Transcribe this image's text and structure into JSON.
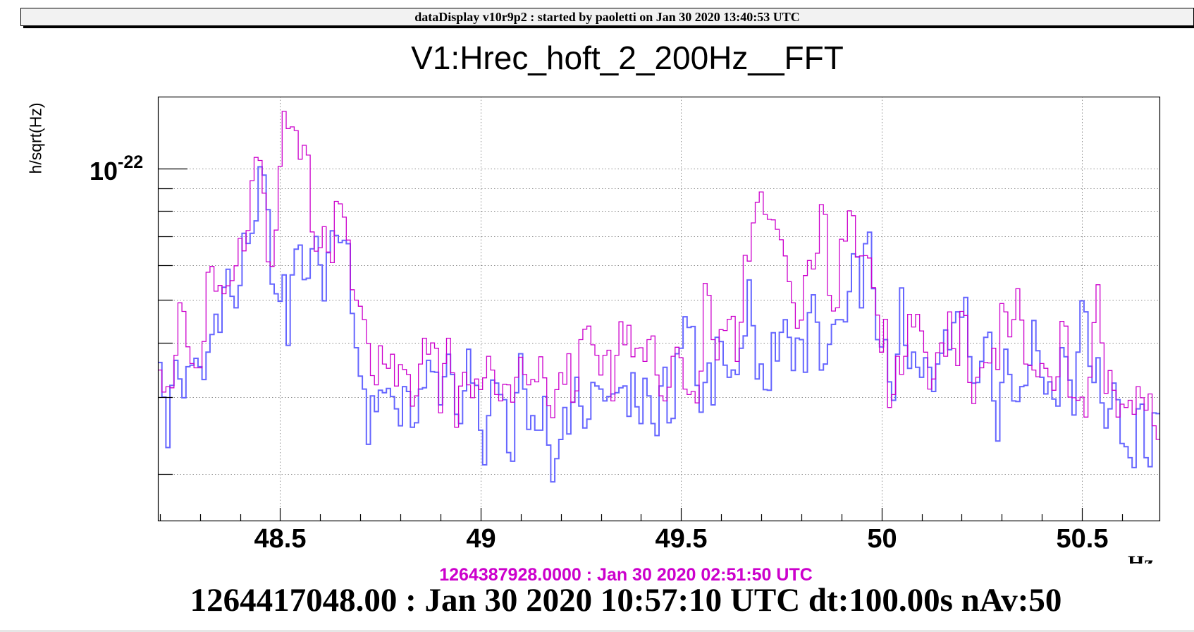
{
  "header": {
    "text": "dataDisplay v10r9p2 : started by paoletti on Jan 30 2020 13:40:53 UTC"
  },
  "footer": {
    "reference_time": "1264387928.0000 : Jan 30 2020 02:51:50 UTC",
    "current_time": "1264417048.00 : Jan 30 2020 10:57:10 UTC dt:100.00s nAv:50"
  },
  "colors": {
    "current": "#6666ff",
    "reference": "#cc00cc",
    "grid": "#8c8c8c"
  },
  "chart_data": {
    "type": "line",
    "style": "step-histogram",
    "title": "V1:Hrec_hoft_2_200Hz__FFT",
    "xlabel": "Hz",
    "ylabel": "h/sqrt(Hz)",
    "xlim": [
      48.195,
      50.695
    ],
    "ylim": [
      1.56e-23,
      1.46e-22
    ],
    "yscale": "log",
    "grid": true,
    "x_ticks": [
      {
        "value": 48.5,
        "label": "48.5"
      },
      {
        "value": 49,
        "label": "49"
      },
      {
        "value": 49.5,
        "label": "49.5"
      },
      {
        "value": 50,
        "label": "50"
      },
      {
        "value": 50.5,
        "label": "50.5"
      }
    ],
    "x_minor_step": 0.1,
    "y_tick_label": {
      "base": "10",
      "exponent": "-22",
      "value": 1e-22
    },
    "y_minor_ticks": [
      9e-23,
      8e-23,
      7e-23,
      6e-23,
      5e-23,
      4e-23,
      3e-23,
      2e-23
    ],
    "bin_start": 48.195,
    "bin_width": 0.01,
    "values_scale": 1e-23,
    "series": [
      {
        "color": "#6666ff",
        "role": "current",
        "values": [
          3.6,
          3.0,
          2.3,
          3.19,
          3.64,
          3.3,
          2.99,
          3.52,
          3.55,
          3.68,
          3.52,
          3.29,
          3.8,
          4.17,
          4.64,
          4.22,
          5.35,
          5.88,
          5.1,
          4.8,
          5.4,
          7.11,
          6.74,
          7.11,
          7.59,
          10.09,
          9.66,
          8.05,
          5.44,
          5.17,
          4.97,
          5.71,
          3.94,
          5.71,
          6.54,
          6.68,
          5.57,
          5.61,
          6.55,
          6.99,
          6.02,
          4.98,
          6.42,
          7.2,
          7.03,
          6.77,
          6.85,
          6.73,
          4.66,
          3.89,
          3.35,
          3.13,
          2.34,
          3.02,
          2.78,
          3.11,
          3.07,
          3.14,
          3.01,
          2.82,
          2.58,
          3.17,
          3.09,
          2.56,
          2.62,
          3.13,
          3.15,
          3.64,
          3.43,
          3.42,
          2.88,
          3.34,
          3.76,
          3.38,
          2.74,
          2.61,
          3.1,
          3.86,
          3.23,
          3.19,
          2.52,
          2.1,
          2.72,
          3.28,
          3.23,
          3.04,
          2.96,
          2.24,
          2.14,
          3.07,
          3.77,
          3.13,
          2.53,
          2.72,
          2.52,
          2.52,
          3.01,
          2.33,
          1.92,
          2.17,
          2.4,
          2.84,
          2.47,
          2.92,
          3.33,
          2.86,
          2.55,
          2.67,
          3.24,
          3.18,
          3.13,
          2.94,
          3.01,
          3.05,
          3.07,
          3.15,
          3.18,
          2.71,
          3.41,
          2.85,
          2.61,
          3.31,
          3.02,
          2.61,
          2.45,
          3.18,
          3.51,
          2.62,
          2.68,
          3.77,
          3.88,
          4.58,
          4.33,
          4.35,
          3.19,
          2.77,
          3.24,
          3.59,
          2.88,
          4.11,
          4.02,
          3.55,
          3.33,
          3.46,
          3.38,
          3.88,
          4.14,
          5.56,
          4.37,
          3.3,
          3.57,
          3.12,
          3.11,
          4.21,
          3.63,
          4.22,
          4.51,
          4.11,
          3.45,
          4.09,
          4.06,
          3.42,
          4.68,
          5.14,
          4.45,
          3.46,
          3.57,
          3.96,
          4.4,
          4.51,
          4.51,
          4.46,
          5.23,
          6.38,
          6.28,
          4.8,
          6.73,
          7.15,
          5.31,
          4.06,
          3.91,
          4.06,
          3.25,
          2.95,
          3.76,
          5.33,
          3.94,
          3.49,
          3.8,
          3.51,
          3.33,
          3.69,
          3.51,
          3.09,
          3.57,
          3.78,
          4.27,
          3.85,
          4.44,
          4.7,
          4.57,
          5.07,
          3.71,
          3.23,
          3.24,
          3.62,
          4.11,
          4.22,
          2.94,
          2.38,
          3.24,
          3.86,
          3.38,
          2.94,
          2.93,
          3.17,
          3.19,
          3.55,
          4.49,
          3.83,
          3.33,
          3.05,
          3.25,
          2.97,
          2.86,
          3.89,
          3.71,
          3.28,
          2.73,
          3.8,
          4.98,
          4.7,
          3.53,
          3.24,
          3.69,
          2.91,
          2.55,
          2.82,
          3.23,
          2.96,
          2.35,
          2.31,
          2.18,
          2.07,
          2.82,
          2.89,
          2.18,
          2.08,
          2.76,
          2.75
        ]
      },
      {
        "color": "#cc00cc",
        "role": "reference",
        "values": [
          3.46,
          3.08,
          3.17,
          3.15,
          3.74,
          4.93,
          4.71,
          3.91,
          3.58,
          3.5,
          3.5,
          4.02,
          5.79,
          5.97,
          5.24,
          5.4,
          5.17,
          5.39,
          5.54,
          5.99,
          6.92,
          6.48,
          7.21,
          9.38,
          10.6,
          10.43,
          8.78,
          6.12,
          5.97,
          7.23,
          10.11,
          13.51,
          12.34,
          12.45,
          12.21,
          10.5,
          11.3,
          10.73,
          7.16,
          6.47,
          6.59,
          7.36,
          6.44,
          6.09,
          8.41,
          8.3,
          7.74,
          6.86,
          5.28,
          5.0,
          4.84,
          4.51,
          3.98,
          3.36,
          3.2,
          3.93,
          3.57,
          3.49,
          3.76,
          3.18,
          3.56,
          3.47,
          3.38,
          2.86,
          3.02,
          3.57,
          4.09,
          3.76,
          3.99,
          3.88,
          2.76,
          3.58,
          4.09,
          3.41,
          2.56,
          3.18,
          3.42,
          3.2,
          2.99,
          3.3,
          3.12,
          3.32,
          3.72,
          3.46,
          3.04,
          2.94,
          3.21,
          3.2,
          2.92,
          3.33,
          3.7,
          3.38,
          3.2,
          3.29,
          3.25,
          3.71,
          3.32,
          2.87,
          2.69,
          3.12,
          3.41,
          3.21,
          3.77,
          2.92,
          3.1,
          4.06,
          4.29,
          4.36,
          3.95,
          3.74,
          3.37,
          3.74,
          3.84,
          2.94,
          3.74,
          4.46,
          3.95,
          4.38,
          3.71,
          3.88,
          3.89,
          3.62,
          4.06,
          4.14,
          3.37,
          3.02,
          2.94,
          3.16,
          3.72,
          3.9,
          3.69,
          3.13,
          3.04,
          3.09,
          2.91,
          3.44,
          5.46,
          5.13,
          4.06,
          3.65,
          4.28,
          4.26,
          4.52,
          4.59,
          3.62,
          4.45,
          6.33,
          6.14,
          7.51,
          8.37,
          8.84,
          7.85,
          7.65,
          7.63,
          7.26,
          6.87,
          6.31,
          5.51,
          4.93,
          4.31,
          4.5,
          5.69,
          6.16,
          5.89,
          6.4,
          8.27,
          7.85,
          5.13,
          4.72,
          4.8,
          6.89,
          6.82,
          8.0,
          7.8,
          6.27,
          6.31,
          6.32,
          6.24,
          5.34,
          4.62,
          3.8,
          4.52,
          2.84,
          3.04,
          3.72,
          3.38,
          3.72,
          4.64,
          4.34,
          4.64,
          4.25,
          3.8,
          3.13,
          3.3,
          3.79,
          3.99,
          3.72,
          4.7,
          3.87,
          3.54,
          4.71,
          4.61,
          3.24,
          2.9,
          3.33,
          3.5,
          3.6,
          3.59,
          3.88,
          3.47,
          4.91,
          4.7,
          4.12,
          4.51,
          5.31,
          4.5,
          3.57,
          3.54,
          3.46,
          3.34,
          3.58,
          3.49,
          3.34,
          3.11,
          3.34,
          4.47,
          4.36,
          3.0,
          2.99,
          2.95,
          3.0,
          2.7,
          3.33,
          4.44,
          5.42,
          3.99,
          3.06,
          3.45,
          3.11,
          2.7,
          2.89,
          2.84,
          2.95,
          2.74,
          3.17,
          2.99,
          2.8,
          3.05,
          2.58,
          2.4
        ]
      }
    ]
  }
}
